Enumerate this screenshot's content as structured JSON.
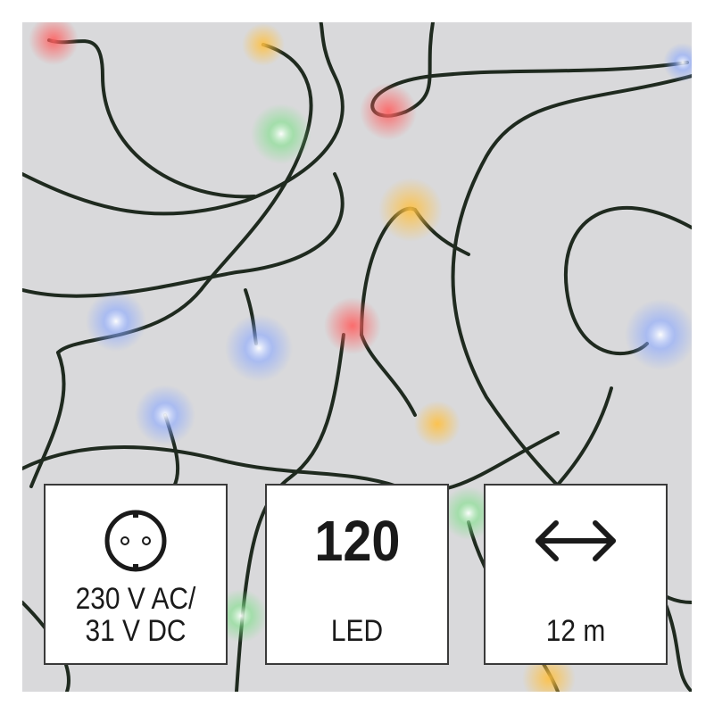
{
  "badges": [
    {
      "icon": "power-socket-icon",
      "label_line1": "230 V AC/",
      "label_line2": "31 V DC"
    },
    {
      "value": "120",
      "label": "LED"
    },
    {
      "icon": "double-arrow-icon",
      "label": "12 m"
    }
  ],
  "colors": {
    "background": "#d9d9db",
    "wire": "#1f2a1f",
    "box_border": "#3a3a3a"
  }
}
